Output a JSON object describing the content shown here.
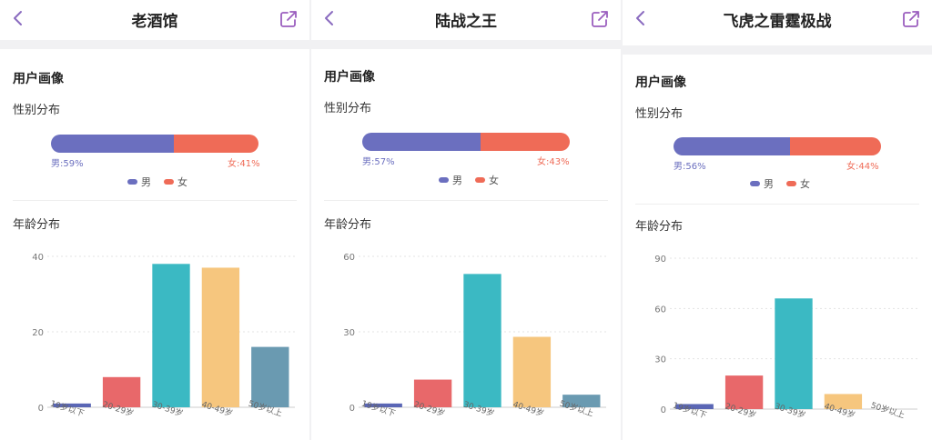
{
  "colors": {
    "male": "#6b6fbf",
    "female": "#ef6b57",
    "back_icon": "#8a6bbf",
    "share_icon": "#9b5fbf",
    "bars": [
      "#5a66b5",
      "#e8686a",
      "#3bb9c3",
      "#f6c67e",
      "#6a9ab1"
    ]
  },
  "panels": [
    {
      "title": "老酒馆",
      "section_title": "用户画像",
      "gender_title": "性别分布",
      "male_pct": 59,
      "male_label": "男:59%",
      "female_label": "女:41%",
      "legend_male": "男",
      "legend_female": "女",
      "age_title": "年龄分布"
    },
    {
      "title": "陆战之王",
      "section_title": "用户画像",
      "gender_title": "性别分布",
      "male_pct": 57,
      "male_label": "男:57%",
      "female_label": "女:43%",
      "legend_male": "男",
      "legend_female": "女",
      "age_title": "年龄分布"
    },
    {
      "title": "飞虎之雷霆极战",
      "section_title": "用户画像",
      "gender_title": "性别分布",
      "male_pct": 56,
      "male_label": "男:56%",
      "female_label": "女:44%",
      "legend_male": "男",
      "legend_female": "女",
      "age_title": "年龄分布"
    }
  ],
  "chart_data": [
    {
      "type": "bar",
      "title": "年龄分布",
      "categories": [
        "19岁以下",
        "20-29岁",
        "30-39岁",
        "40-49岁",
        "50岁以上"
      ],
      "values": [
        1,
        8,
        38,
        37,
        16
      ],
      "ylim": [
        0,
        40
      ],
      "yticks": [
        0,
        20,
        40
      ],
      "grid": true
    },
    {
      "type": "bar",
      "title": "年龄分布",
      "categories": [
        "19岁以下",
        "20-29岁",
        "30-39岁",
        "40-49岁",
        "50岁以上"
      ],
      "values": [
        1.5,
        11,
        53,
        28,
        5
      ],
      "ylim": [
        0,
        60
      ],
      "yticks": [
        0,
        30,
        60
      ],
      "grid": true
    },
    {
      "type": "bar",
      "title": "年龄分布",
      "categories": [
        "19岁以下",
        "20-29岁",
        "30-39岁",
        "40-49岁",
        "50岁以上"
      ],
      "values": [
        3,
        20,
        66,
        9,
        0
      ],
      "ylim": [
        0,
        90
      ],
      "yticks": [
        0,
        30,
        60,
        90
      ],
      "grid": true
    }
  ]
}
